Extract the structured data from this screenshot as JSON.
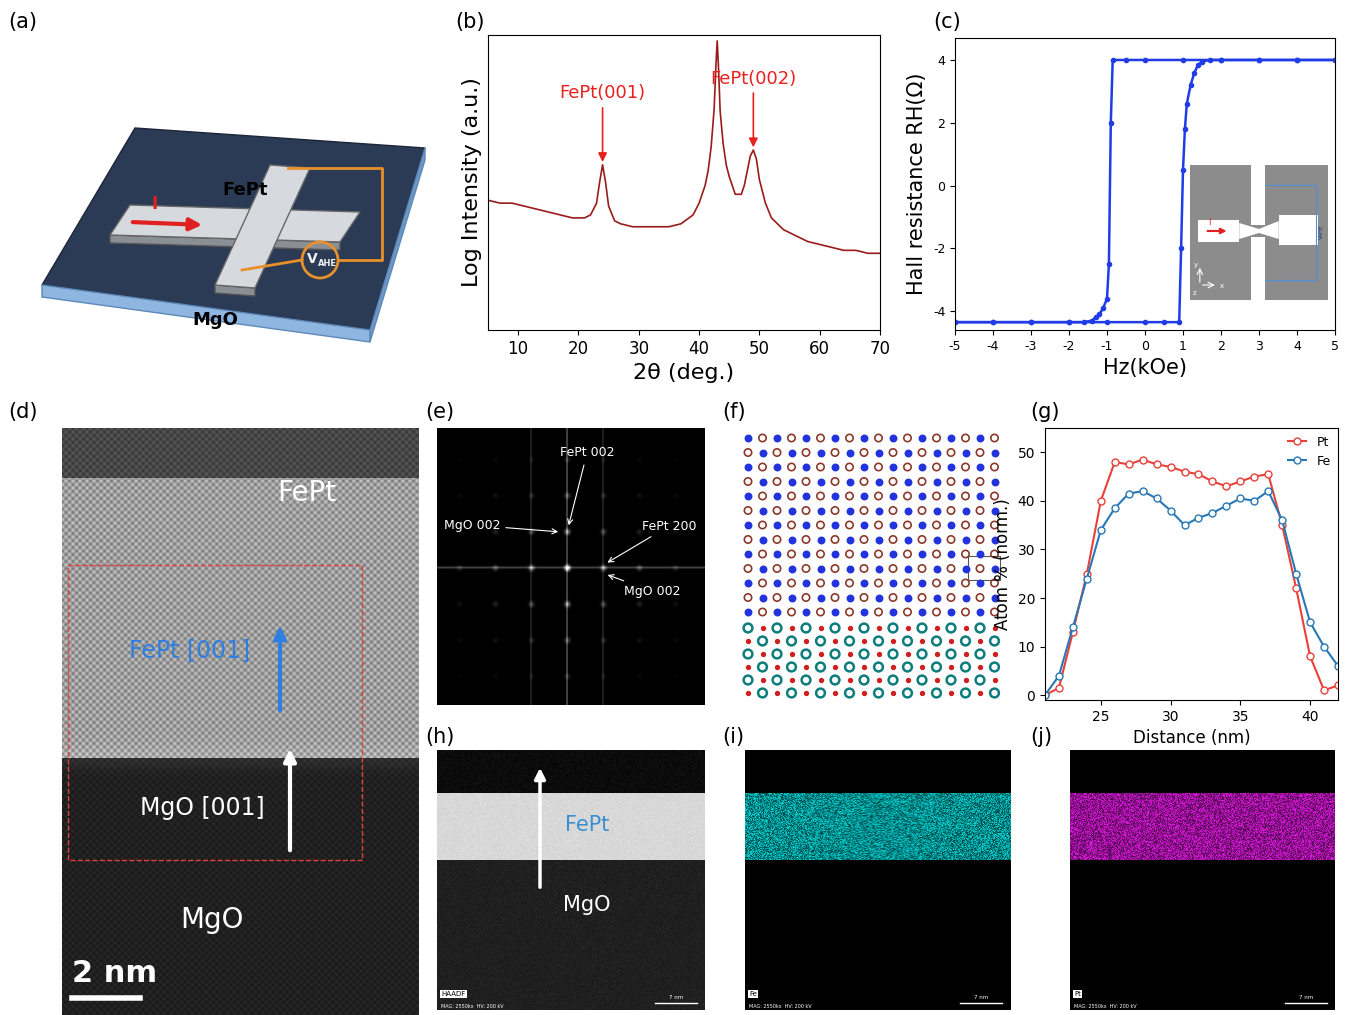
{
  "chart_data": [
    {
      "label": "(b)",
      "type": "line",
      "x_label": "2θ (deg.)",
      "y_label": "Log Intensity (a.u.)",
      "x": [
        5,
        7,
        9,
        11,
        13,
        15,
        17,
        19,
        21,
        22,
        23,
        23.5,
        24,
        24.5,
        25,
        26,
        27,
        29,
        31,
        33,
        35,
        37,
        39,
        40,
        41,
        41.5,
        42,
        42.5,
        42.8,
        43,
        43.2,
        43.5,
        44,
        44.5,
        45,
        46,
        47,
        47.5,
        48,
        48.5,
        49,
        49.5,
        50,
        51,
        52,
        54,
        56,
        58,
        60,
        62,
        64,
        66,
        68,
        70
      ],
      "values": [
        4.4,
        4.3,
        4.3,
        4.2,
        4.1,
        4.0,
        3.9,
        3.8,
        3.8,
        3.9,
        4.3,
        5.0,
        5.6,
        5.0,
        4.2,
        3.7,
        3.6,
        3.5,
        3.5,
        3.5,
        3.5,
        3.6,
        3.9,
        4.3,
        4.9,
        5.4,
        6.2,
        7.5,
        9.0,
        9.8,
        9.0,
        7.4,
        6.3,
        5.6,
        5.2,
        4.6,
        4.6,
        4.9,
        5.4,
        5.9,
        6.1,
        5.8,
        5.1,
        4.3,
        3.8,
        3.4,
        3.2,
        3.0,
        2.9,
        2.8,
        2.7,
        2.7,
        2.6,
        2.6
      ],
      "color": "#9b1b1b",
      "xlim": [
        5,
        70
      ],
      "xticks": [
        10,
        20,
        30,
        40,
        50,
        60,
        70
      ],
      "ylim": [
        0,
        10
      ],
      "tick_labels": "x",
      "annotations": [
        {
          "text": "FePt(001)",
          "x": 24,
          "y": 5.6,
          "color": "#e8201e"
        },
        {
          "text": "FePt(002)",
          "x": 49,
          "y": 6.1,
          "color": "#e8201e"
        }
      ]
    },
    {
      "label": "(c)",
      "type": "line",
      "x_label": "Hz(kOe)",
      "y_label": "Hall resistance RH(Ω)",
      "series": [
        {
          "color": "#1f3ce6",
          "marker": "o",
          "x": [
            5,
            4,
            3,
            2,
            1,
            0,
            -0.5,
            -0.85,
            -0.9,
            -0.95,
            -1.0,
            -1.1,
            -1.2,
            -1.3,
            -1.4,
            -1.6,
            -2,
            -3,
            -4,
            -5
          ],
          "values": [
            4,
            4,
            4,
            4,
            4,
            4,
            4,
            4,
            2.0,
            -2.5,
            -3.6,
            -3.9,
            -4.1,
            -4.2,
            -4.3,
            -4.35,
            -4.35,
            -4.35,
            -4.35,
            -4.35
          ]
        },
        {
          "color": "#1f3ce6",
          "marker": "o",
          "x": [
            -5,
            -4,
            -3,
            -2,
            -1,
            0,
            0.5,
            0.9,
            0.95,
            1.0,
            1.05,
            1.1,
            1.2,
            1.3,
            1.4,
            1.5,
            1.7,
            2,
            3,
            4,
            5
          ],
          "values": [
            -4.35,
            -4.35,
            -4.35,
            -4.35,
            -4.35,
            -4.35,
            -4.35,
            -4.35,
            -2.0,
            0.5,
            1.8,
            2.6,
            3.2,
            3.6,
            3.85,
            3.95,
            4.0,
            4.0,
            4.0,
            4.0,
            4.0
          ]
        }
      ],
      "xlim": [
        -5,
        5
      ],
      "xticks": [
        -5,
        -4,
        -3,
        -2,
        -1,
        0,
        1,
        2,
        3,
        4,
        5
      ],
      "ylim": [
        -4.6,
        4.7
      ],
      "yticks": [
        -4,
        -2,
        0,
        2,
        4
      ],
      "inset": {
        "current": "I",
        "voltage": "VAHE",
        "axes": [
          "x",
          "y",
          "z"
        ]
      }
    },
    {
      "label": "(g)",
      "type": "line",
      "x_label": "Distance (nm)",
      "y_label": "Atom % (norm.)",
      "x": [
        21,
        22,
        23,
        24,
        25,
        26,
        27,
        28,
        29,
        30,
        31,
        32,
        33,
        34,
        35,
        36,
        37,
        38,
        39,
        40,
        41,
        42
      ],
      "series": [
        {
          "name": "Pt",
          "color": "#e8403a",
          "marker": "o",
          "values": [
            0,
            1.5,
            13,
            25,
            40,
            48,
            47.5,
            48.5,
            47.5,
            47,
            46,
            45.5,
            44,
            43,
            44,
            45,
            45.5,
            35,
            22,
            8,
            1,
            2
          ]
        },
        {
          "name": "Fe",
          "color": "#2878b5",
          "marker": "o",
          "values": [
            0,
            4,
            14,
            24,
            34,
            38.5,
            41.5,
            42,
            40.5,
            38,
            35,
            36.5,
            37.5,
            39,
            40.5,
            40,
            42,
            36,
            25,
            15,
            10,
            6
          ]
        }
      ],
      "xlim": [
        21,
        42
      ],
      "xticks": [
        25,
        30,
        35,
        40
      ],
      "ylim": [
        -1,
        55
      ],
      "yticks": [
        0,
        10,
        20,
        30,
        40,
        50
      ],
      "legend": "upper right"
    }
  ],
  "images": {
    "a": {
      "label": "(a)",
      "current": "I",
      "film": "FePt",
      "voltage": {
        "main": "V",
        "sub": "AHE"
      },
      "substrate": "MgO"
    },
    "d": {
      "label": "(d)",
      "film": "FePt",
      "film_axis": "FePt [001]",
      "substrate_axis": "MgO [001]",
      "substrate": "MgO",
      "scale_bar": "2 nm"
    },
    "e": {
      "label": "(e)",
      "spots": [
        "FePt 002",
        "MgO 002",
        "FePt 200",
        "MgO 002"
      ]
    },
    "f": {
      "label": "(f)"
    },
    "h": {
      "label": "(h)",
      "film": "FePt",
      "substrate": "MgO",
      "tag": "HAADF",
      "info": "MAG: 2550kx  HV: 200 kV",
      "scale_bar": "7 nm"
    },
    "i": {
      "label": "(i)",
      "tag": "Fe",
      "info": "MAG: 2550kx  HV: 200 kV",
      "scale_bar": "7 nm"
    },
    "j": {
      "label": "(j)",
      "tag": "Pt",
      "info": "MAG: 2550kx  HV: 200 kV",
      "scale_bar": "7 nm"
    }
  }
}
